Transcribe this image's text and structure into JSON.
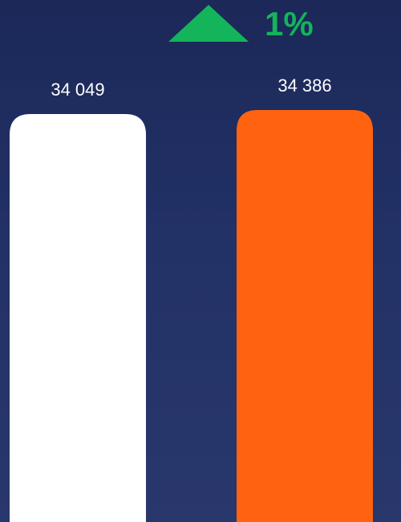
{
  "chart_data": {
    "type": "bar",
    "annotation": "1%",
    "annotation_color": "#13b45a",
    "categories": [
      null,
      null
    ],
    "values": [
      34049,
      34386
    ],
    "value_labels": [
      "34 049",
      "34 386"
    ],
    "colors": [
      "#ffffff",
      "#ff630f"
    ]
  }
}
